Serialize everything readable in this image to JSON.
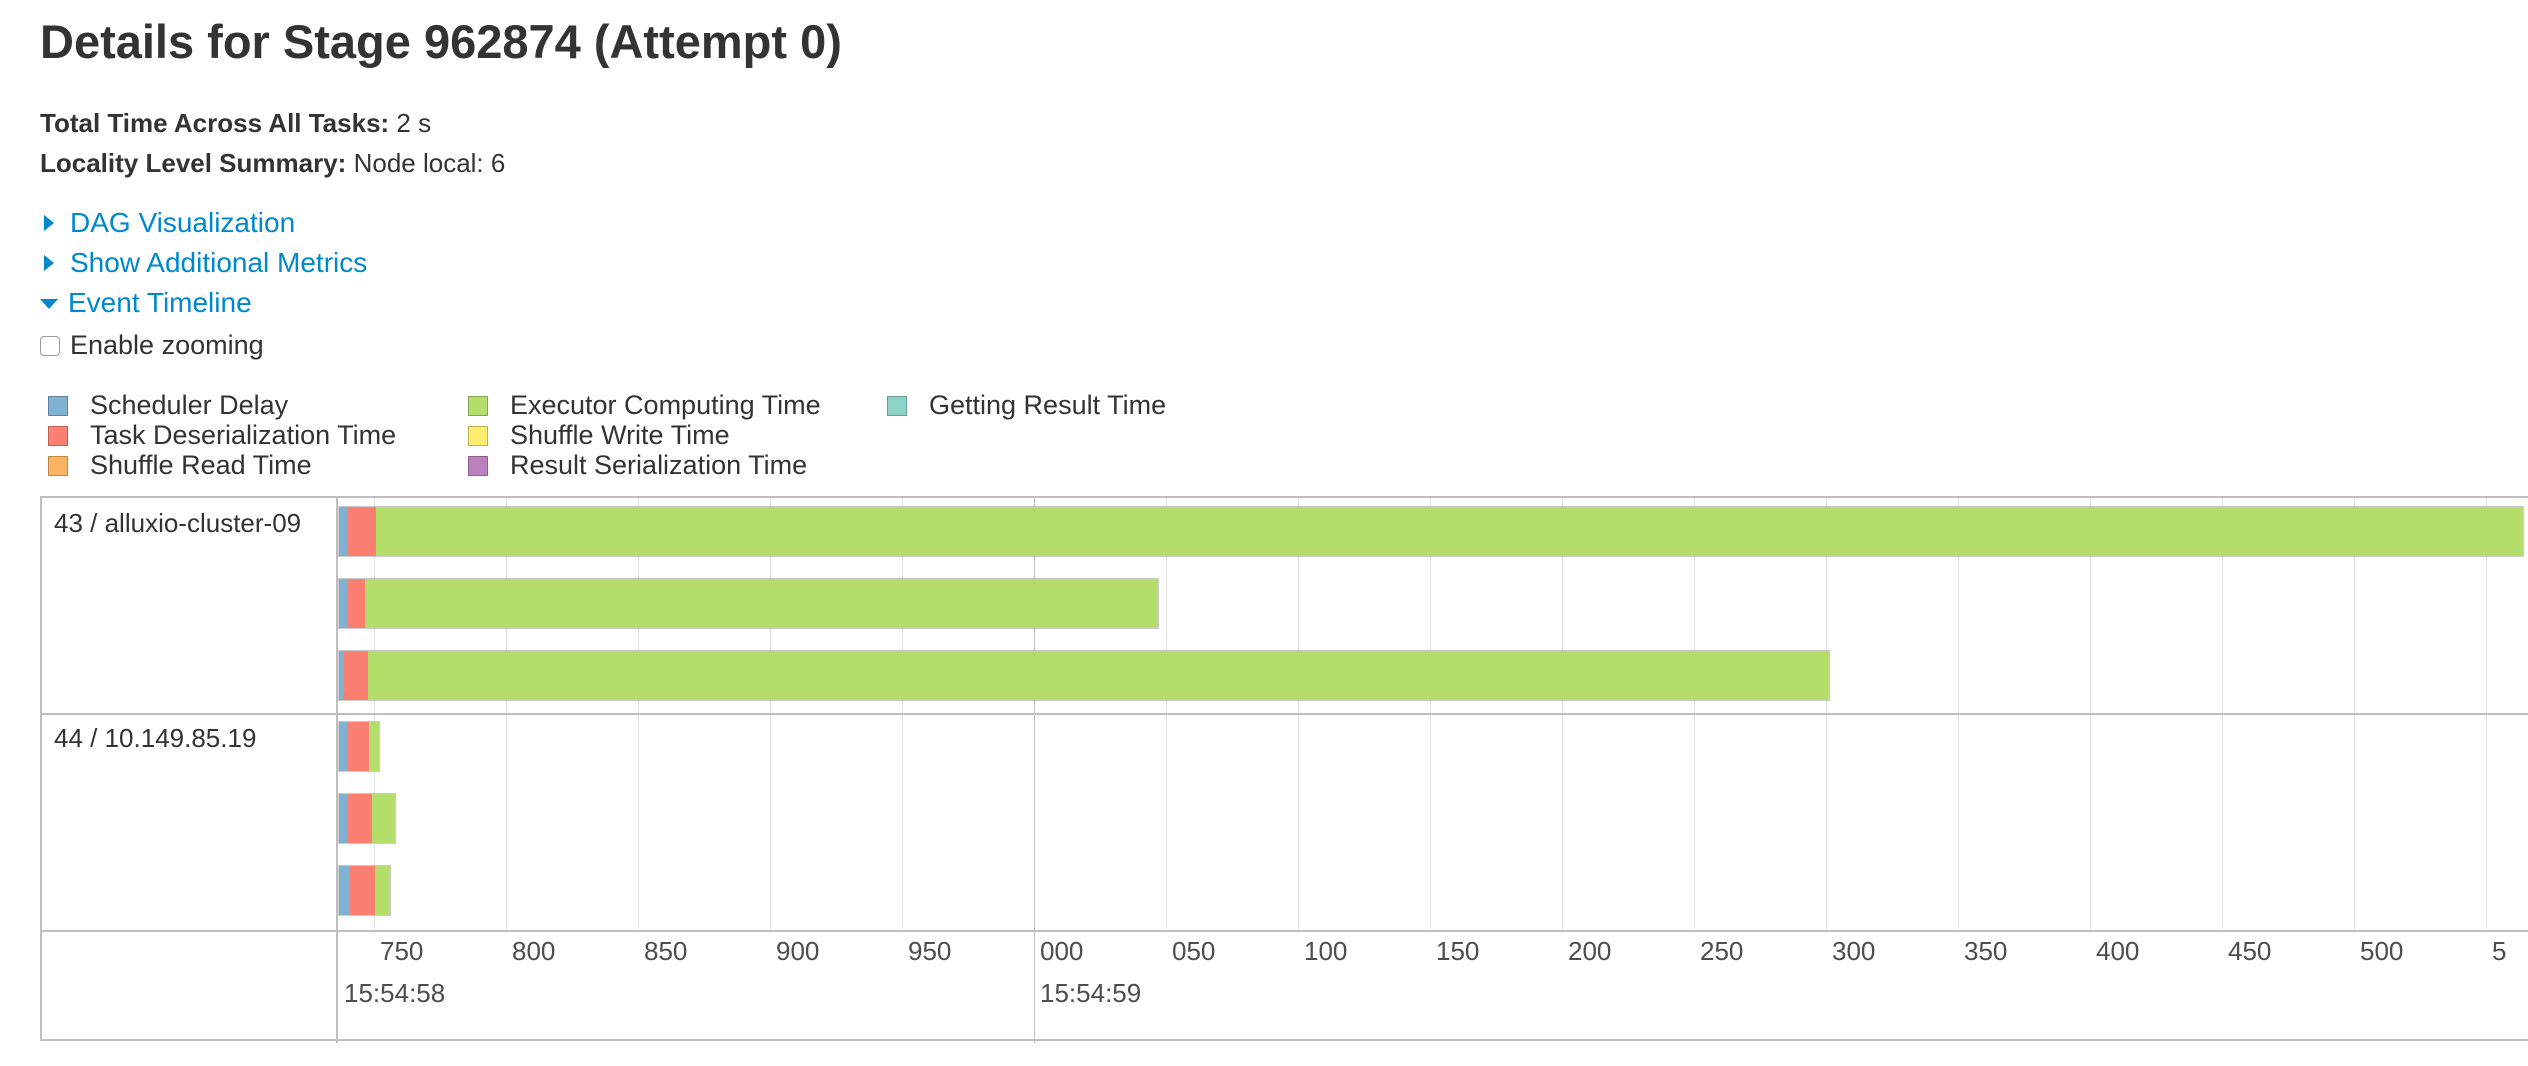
{
  "page": {
    "title": "Details for Stage 962874 (Attempt 0)",
    "summary": [
      {
        "label": "Total Time Across All Tasks:",
        "value": "2 s"
      },
      {
        "label": "Locality Level Summary:",
        "value": "Node local: 6"
      }
    ],
    "toggles": {
      "dag": "DAG Visualization",
      "metrics": "Show Additional Metrics",
      "timeline": "Event Timeline"
    },
    "zoom_label": "Enable zooming",
    "zoom_enabled": false
  },
  "legend": [
    {
      "label": "Scheduler Delay",
      "color": "#80b1d3"
    },
    {
      "label": "Task Deserialization Time",
      "color": "#fb8072"
    },
    {
      "label": "Shuffle Read Time",
      "color": "#fdb462"
    },
    {
      "label": "Executor Computing Time",
      "color": "#b3de69"
    },
    {
      "label": "Shuffle Write Time",
      "color": "#ffed6f"
    },
    {
      "label": "Result Serialization Time",
      "color": "#bc80bd"
    },
    {
      "label": "Getting Result Time",
      "color": "#8dd3c7"
    }
  ],
  "timeline": {
    "axis_ticks": [
      "750",
      "800",
      "850",
      "900",
      "950",
      "000",
      "050",
      "100",
      "150",
      "200",
      "250",
      "300",
      "350",
      "400",
      "450",
      "500",
      "5"
    ],
    "major_ticks": [
      "15:54:58",
      "15:54:59"
    ],
    "groups": [
      {
        "label": "43 / alluxio-cluster-09",
        "tasks": [
          {
            "segments": [
              {
                "type": "Scheduler Delay",
                "ms": 3
              },
              {
                "type": "Task Deserialization Time",
                "ms": 11
              },
              {
                "type": "Executor Computing Time",
                "ms": 814
              }
            ]
          },
          {
            "segments": [
              {
                "type": "Scheduler Delay",
                "ms": 3
              },
              {
                "type": "Task Deserialization Time",
                "ms": 7
              },
              {
                "type": "Executor Computing Time",
                "ms": 301
              }
            ]
          },
          {
            "segments": [
              {
                "type": "Scheduler Delay",
                "ms": 2
              },
              {
                "type": "Task Deserialization Time",
                "ms": 9
              },
              {
                "type": "Executor Computing Time",
                "ms": 554
              }
            ]
          }
        ]
      },
      {
        "label": "44 / 10.149.85.19",
        "tasks": [
          {
            "segments": [
              {
                "type": "Scheduler Delay",
                "ms": 3
              },
              {
                "type": "Task Deserialization Time",
                "ms": 9
              },
              {
                "type": "Executor Computing Time",
                "ms": 4
              }
            ]
          },
          {
            "segments": [
              {
                "type": "Scheduler Delay",
                "ms": 3
              },
              {
                "type": "Task Deserialization Time",
                "ms": 10
              },
              {
                "type": "Executor Computing Time",
                "ms": 9
              }
            ]
          },
          {
            "segments": [
              {
                "type": "Scheduler Delay",
                "ms": 4
              },
              {
                "type": "Task Deserialization Time",
                "ms": 10
              },
              {
                "type": "Executor Computing Time",
                "ms": 6
              }
            ]
          }
        ]
      }
    ]
  }
}
